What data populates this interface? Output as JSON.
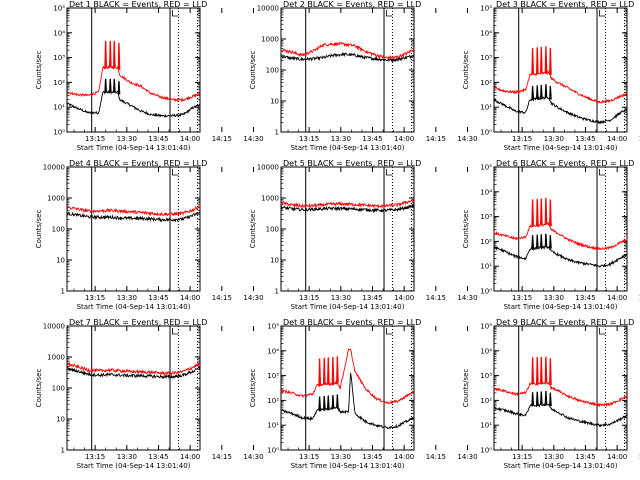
{
  "figure": {
    "panel_title_text": "BLACK = Events, RED = LLD",
    "xlabel": "Start Time (04-Sep-14 13:01:40)",
    "ylabel": "Counts/sec",
    "colors": {
      "events": "#000000",
      "lld": "#ff0000",
      "axes": "#000000"
    }
  },
  "chart_data": [
    {
      "type": "line",
      "title": "Det 1",
      "ylog": true,
      "yticks": [
        "10⁰",
        "10¹",
        "10²",
        "10³",
        "10⁴",
        "10⁵"
      ],
      "ylim": [
        1,
        100000
      ],
      "xlim_min": [
        0,
        63
      ],
      "xticks": [
        "13:15",
        "13:30",
        "13:45",
        "14:00",
        "14:15",
        "14:30"
      ],
      "solid_vlines_min": [
        11.7,
        48.8
      ],
      "dotted_vlines_min": [
        52.8,
        61.8
      ],
      "spikes_min": [
        18.0,
        20.2,
        22.1,
        24.3
      ],
      "series": [
        {
          "name": "BLACK = Events",
          "color": "#000000",
          "x": [
            0,
            5,
            10,
            15,
            17,
            24,
            25,
            30,
            35,
            40,
            45,
            50,
            55,
            60,
            63
          ],
          "y": [
            14,
            9,
            6,
            6,
            40,
            40,
            20,
            12,
            7,
            5,
            4.5,
            4.5,
            5,
            10,
            12
          ]
        },
        {
          "name": "RED = LLD",
          "color": "#ff0000",
          "x": [
            0,
            5,
            10,
            15,
            17,
            24,
            25,
            30,
            35,
            40,
            45,
            50,
            55,
            60,
            63
          ],
          "y": [
            40,
            32,
            30,
            40,
            400,
            400,
            200,
            100,
            70,
            35,
            25,
            20,
            20,
            28,
            35
          ]
        }
      ]
    },
    {
      "type": "line",
      "title": "Det 2",
      "ylog": true,
      "yticks": [
        "1",
        "10",
        "100",
        "1000",
        "10000"
      ],
      "ylim": [
        1,
        10000
      ],
      "xlim_min": [
        0,
        63
      ],
      "xticks": [
        "13:15",
        "13:30",
        "13:45",
        "14:00",
        "14:15",
        "14:30"
      ],
      "solid_vlines_min": [
        11.7,
        48.8
      ],
      "dotted_vlines_min": [
        52.8,
        61.8
      ],
      "spikes_min": [],
      "series": [
        {
          "name": "BLACK = Events",
          "color": "#000000",
          "x": [
            0,
            5,
            10,
            15,
            20,
            25,
            30,
            35,
            40,
            45,
            50,
            55,
            60,
            63
          ],
          "y": [
            280,
            240,
            220,
            230,
            250,
            300,
            320,
            300,
            250,
            230,
            210,
            220,
            260,
            290
          ]
        },
        {
          "name": "RED = LLD",
          "color": "#ff0000",
          "x": [
            0,
            5,
            10,
            15,
            20,
            25,
            30,
            35,
            40,
            45,
            50,
            55,
            60,
            63
          ],
          "y": [
            450,
            380,
            300,
            400,
            650,
            700,
            680,
            600,
            400,
            300,
            250,
            260,
            350,
            480
          ]
        }
      ]
    },
    {
      "type": "line",
      "title": "Det 3",
      "ylog": true,
      "yticks": [
        "10⁰",
        "10¹",
        "10²",
        "10³",
        "10⁴",
        "10⁵"
      ],
      "ylim": [
        1,
        100000
      ],
      "xlim_min": [
        0,
        63
      ],
      "xticks": [
        "13:15",
        "13:30",
        "13:45",
        "14:00",
        "14:15",
        "14:30"
      ],
      "solid_vlines_min": [
        11.7,
        48.8
      ],
      "dotted_vlines_min": [
        52.8,
        61.8
      ],
      "spikes_min": [
        18.0,
        20.2,
        22.1,
        24.3,
        26.4
      ],
      "series": [
        {
          "name": "BLACK = Events",
          "color": "#000000",
          "x": [
            0,
            5,
            10,
            15,
            17,
            26,
            27,
            30,
            35,
            40,
            45,
            50,
            55,
            60,
            63
          ],
          "y": [
            20,
            12,
            7,
            6,
            20,
            25,
            15,
            10,
            6,
            4,
            3,
            2.5,
            3,
            6,
            8
          ]
        },
        {
          "name": "RED = LLD",
          "color": "#ff0000",
          "x": [
            0,
            5,
            10,
            15,
            17,
            26,
            27,
            30,
            35,
            40,
            45,
            50,
            55,
            60,
            63
          ],
          "y": [
            60,
            45,
            40,
            50,
            200,
            250,
            150,
            100,
            60,
            35,
            22,
            16,
            18,
            28,
            35
          ]
        }
      ]
    },
    {
      "type": "line",
      "title": "Det 4",
      "ylog": true,
      "yticks": [
        "1",
        "10",
        "100",
        "1000",
        "10000"
      ],
      "ylim": [
        1,
        10000
      ],
      "xlim_min": [
        0,
        63
      ],
      "xticks": [
        "13:15",
        "13:30",
        "13:45",
        "14:00",
        "14:15",
        "14:30"
      ],
      "solid_vlines_min": [
        11.7,
        48.8
      ],
      "dotted_vlines_min": [
        52.8,
        61.8
      ],
      "spikes_min": [],
      "series": [
        {
          "name": "BLACK = Events",
          "color": "#000000",
          "x": [
            0,
            5,
            10,
            15,
            20,
            25,
            30,
            35,
            40,
            45,
            50,
            55,
            60,
            63
          ],
          "y": [
            320,
            280,
            250,
            240,
            240,
            230,
            220,
            220,
            210,
            200,
            200,
            210,
            280,
            340
          ]
        },
        {
          "name": "RED = LLD",
          "color": "#ff0000",
          "x": [
            0,
            5,
            10,
            15,
            20,
            25,
            30,
            35,
            40,
            45,
            50,
            55,
            60,
            63
          ],
          "y": [
            500,
            440,
            380,
            380,
            400,
            380,
            360,
            340,
            320,
            300,
            300,
            320,
            420,
            550
          ]
        }
      ]
    },
    {
      "type": "line",
      "title": "Det 5",
      "ylog": true,
      "yticks": [
        "1",
        "10",
        "100",
        "1000",
        "10000"
      ],
      "ylim": [
        1,
        10000
      ],
      "xlim_min": [
        0,
        63
      ],
      "xticks": [
        "13:15",
        "13:30",
        "13:45",
        "14:00",
        "14:15",
        "14:30"
      ],
      "solid_vlines_min": [
        11.7,
        48.8
      ],
      "dotted_vlines_min": [
        52.8,
        61.8
      ],
      "spikes_min": [],
      "series": [
        {
          "name": "BLACK = Events",
          "color": "#000000",
          "x": [
            0,
            5,
            10,
            15,
            20,
            25,
            30,
            35,
            40,
            45,
            50,
            55,
            60,
            63
          ],
          "y": [
            500,
            450,
            420,
            430,
            450,
            460,
            450,
            440,
            420,
            400,
            400,
            420,
            500,
            560
          ]
        },
        {
          "name": "RED = LLD",
          "color": "#ff0000",
          "x": [
            0,
            5,
            10,
            15,
            20,
            25,
            30,
            35,
            40,
            45,
            50,
            55,
            60,
            63
          ],
          "y": [
            700,
            600,
            550,
            560,
            600,
            640,
            640,
            620,
            580,
            550,
            560,
            600,
            750,
            850
          ]
        }
      ]
    },
    {
      "type": "line",
      "title": "Det 6",
      "ylog": true,
      "yticks": [
        "10⁰",
        "10¹",
        "10²",
        "10³",
        "10⁴",
        "10⁵"
      ],
      "ylim": [
        1,
        100000
      ],
      "xlim_min": [
        0,
        63
      ],
      "xticks": [
        "13:15",
        "13:30",
        "13:45",
        "14:00",
        "14:15",
        "14:30"
      ],
      "solid_vlines_min": [
        11.7,
        48.8
      ],
      "dotted_vlines_min": [
        52.8,
        61.8
      ],
      "spikes_min": [
        18.0,
        20.2,
        22.1,
        24.3,
        26.4
      ],
      "series": [
        {
          "name": "BLACK = Events",
          "color": "#000000",
          "x": [
            0,
            5,
            10,
            15,
            17,
            26,
            27,
            30,
            35,
            40,
            45,
            50,
            55,
            60,
            63
          ],
          "y": [
            60,
            40,
            25,
            20,
            50,
            60,
            40,
            30,
            18,
            14,
            12,
            10,
            12,
            22,
            30
          ]
        },
        {
          "name": "RED = LLD",
          "color": "#ff0000",
          "x": [
            0,
            5,
            10,
            15,
            17,
            26,
            27,
            30,
            35,
            40,
            45,
            50,
            55,
            60,
            63
          ],
          "y": [
            220,
            170,
            130,
            150,
            400,
            500,
            300,
            220,
            120,
            80,
            60,
            50,
            55,
            90,
            120
          ]
        }
      ]
    },
    {
      "type": "line",
      "title": "Det 7",
      "ylog": true,
      "yticks": [
        "1",
        "10",
        "100",
        "1000",
        "10000"
      ],
      "ylim": [
        1,
        10000
      ],
      "xlim_min": [
        0,
        63
      ],
      "xticks": [
        "13:15",
        "13:30",
        "13:45",
        "14:00",
        "14:15",
        "14:30"
      ],
      "solid_vlines_min": [
        11.7,
        48.8
      ],
      "dotted_vlines_min": [
        52.8,
        61.8
      ],
      "spikes_min": [],
      "series": [
        {
          "name": "BLACK = Events",
          "color": "#000000",
          "x": [
            0,
            5,
            10,
            15,
            20,
            25,
            30,
            35,
            40,
            45,
            50,
            55,
            60,
            63
          ],
          "y": [
            420,
            350,
            280,
            260,
            270,
            260,
            250,
            250,
            240,
            230,
            230,
            260,
            350,
            450
          ]
        },
        {
          "name": "RED = LLD",
          "color": "#ff0000",
          "x": [
            0,
            5,
            10,
            15,
            20,
            25,
            30,
            35,
            40,
            45,
            50,
            55,
            60,
            63
          ],
          "y": [
            600,
            480,
            380,
            360,
            380,
            360,
            340,
            330,
            320,
            300,
            300,
            340,
            480,
            620
          ]
        }
      ]
    },
    {
      "type": "line",
      "title": "Det 8",
      "ylog": true,
      "yticks": [
        "10⁰",
        "10¹",
        "10²",
        "10³",
        "10⁴",
        "10⁵"
      ],
      "ylim": [
        1,
        100000
      ],
      "xlim_min": [
        0,
        63
      ],
      "xticks": [
        "13:15",
        "13:30",
        "13:45",
        "14:00",
        "14:15",
        "14:30"
      ],
      "solid_vlines_min": [
        11.7,
        48.8
      ],
      "dotted_vlines_min": [
        52.8,
        61.8
      ],
      "spikes_min": [
        18.0,
        20.2,
        22.1,
        24.3,
        26.4
      ],
      "series": [
        {
          "name": "BLACK = Events",
          "color": "#000000",
          "x": [
            0,
            5,
            10,
            15,
            17,
            27,
            28,
            32,
            33,
            35,
            40,
            45,
            50,
            55,
            60,
            63
          ],
          "y": [
            40,
            30,
            20,
            18,
            40,
            50,
            35,
            35,
            1500,
            30,
            14,
            10,
            8,
            9,
            15,
            20
          ]
        },
        {
          "name": "RED = LLD",
          "color": "#ff0000",
          "x": [
            0,
            5,
            10,
            15,
            17,
            27,
            28,
            32,
            33,
            35,
            40,
            45,
            50,
            55,
            60,
            63
          ],
          "y": [
            250,
            200,
            150,
            180,
            400,
            500,
            300,
            11000,
            11000,
            1500,
            300,
            120,
            80,
            90,
            160,
            230
          ]
        }
      ]
    },
    {
      "type": "line",
      "title": "Det 9",
      "ylog": true,
      "yticks": [
        "10⁰",
        "10¹",
        "10²",
        "10³",
        "10⁴",
        "10⁵"
      ],
      "ylim": [
        1,
        100000
      ],
      "xlim_min": [
        0,
        63
      ],
      "xticks": [
        "13:15",
        "13:30",
        "13:45",
        "14:00",
        "14:15",
        "14:30"
      ],
      "solid_vlines_min": [
        11.7,
        48.8
      ],
      "dotted_vlines_min": [
        52.8,
        61.8
      ],
      "spikes_min": [
        18.0,
        20.2,
        22.1,
        24.3,
        26.4
      ],
      "series": [
        {
          "name": "BLACK = Events",
          "color": "#000000",
          "x": [
            0,
            5,
            10,
            15,
            17,
            26,
            27,
            30,
            35,
            40,
            45,
            50,
            55,
            60,
            63
          ],
          "y": [
            50,
            40,
            30,
            25,
            60,
            70,
            45,
            35,
            20,
            15,
            12,
            10,
            11,
            18,
            25
          ]
        },
        {
          "name": "RED = LLD",
          "color": "#ff0000",
          "x": [
            0,
            5,
            10,
            15,
            17,
            26,
            27,
            30,
            35,
            40,
            45,
            50,
            55,
            60,
            63
          ],
          "y": [
            300,
            240,
            180,
            200,
            450,
            500,
            320,
            250,
            150,
            100,
            80,
            65,
            70,
            110,
            150
          ]
        }
      ]
    }
  ]
}
